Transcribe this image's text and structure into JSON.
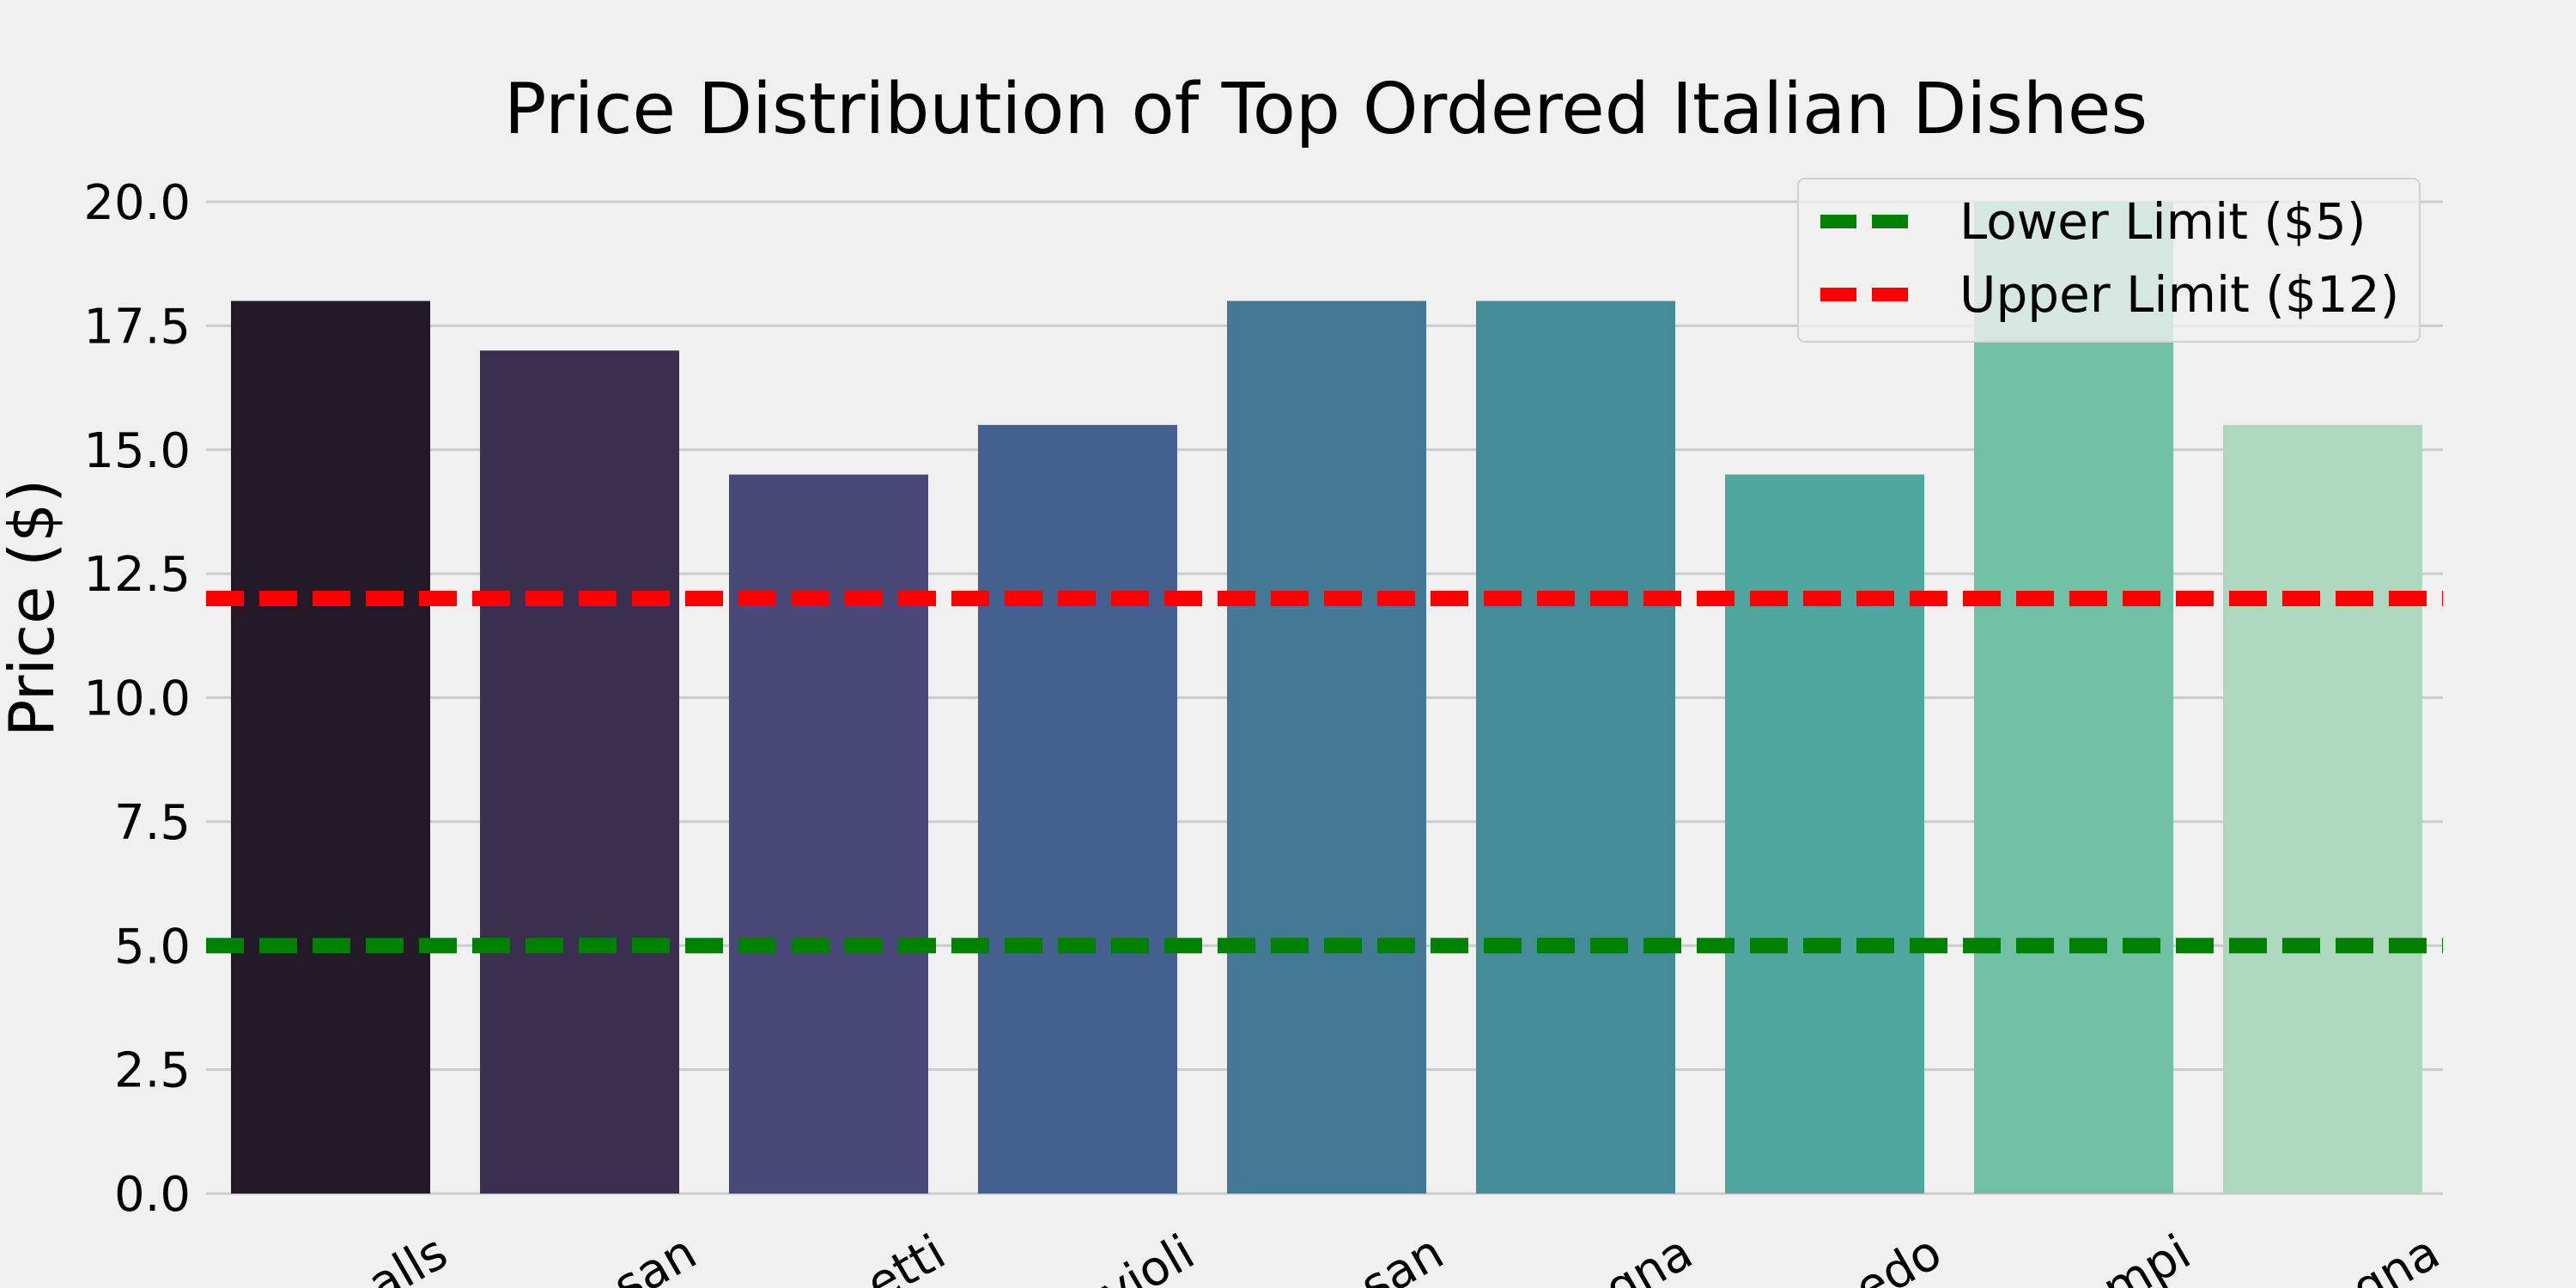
{
  "chart_data": {
    "type": "bar",
    "title": "Price Distribution of Top Ordered Italian Dishes",
    "xlabel": "",
    "ylabel": "Price ($)",
    "ylim": [
      0,
      20
    ],
    "yticks": [
      "0.0",
      "2.5",
      "5.0",
      "7.5",
      "10.0",
      "12.5",
      "15.0",
      "17.5",
      "20.0"
    ],
    "categories": [
      "Meatballs",
      "Chicken Parmesan",
      "Spaghetti",
      "Ravioli",
      "Eggplant Parmesan",
      "Lasagna",
      "Fettuccine Alfredo",
      "Shrimp Scampi",
      "Vegetable Lasagna"
    ],
    "category_labels": [
      "alls",
      "san",
      "etti",
      "violi",
      "san",
      "gna",
      "edo",
      "mpi",
      "gna"
    ],
    "values": [
      18.0,
      17.0,
      14.5,
      15.5,
      18.0,
      18.0,
      14.5,
      20.0,
      15.5
    ],
    "colors": [
      "#241a27",
      "#3a2f4f",
      "#4a4878",
      "#44608e",
      "#437994",
      "#458c99",
      "#4fa69f",
      "#6fc0a5",
      "#aed8bd"
    ],
    "reference_lines": [
      {
        "label": "Lower Limit ($5)",
        "value": 5,
        "color": "#008000"
      },
      {
        "label": "Upper Limit ($12)",
        "value": 12,
        "color": "#ff0000"
      }
    ],
    "grid": true,
    "legend_position": "top-right"
  }
}
